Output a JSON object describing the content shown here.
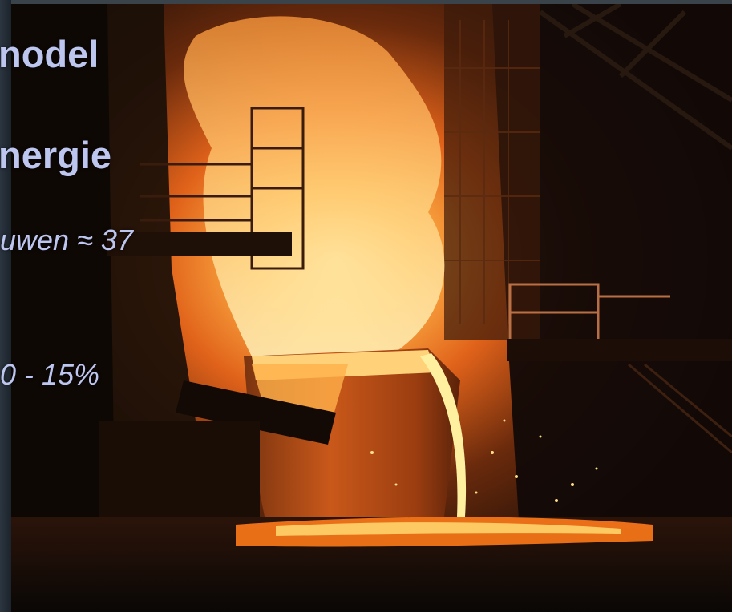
{
  "slide": {
    "lines": [
      {
        "text": "nodel",
        "style": "bold"
      },
      {
        "text": "nergie",
        "style": "bold"
      },
      {
        "text": "uwen ≈ 37",
        "style": "italic"
      },
      {
        "text": "0 - 15%",
        "style": "italic"
      }
    ],
    "text_color": "#bdc6ef"
  },
  "photo": {
    "subject": "molten-steel-pouring",
    "colors": {
      "hot": "#fff2a8",
      "orange": "#ff8a1e",
      "deep": "#c2410c",
      "dark": "#140b06"
    }
  }
}
